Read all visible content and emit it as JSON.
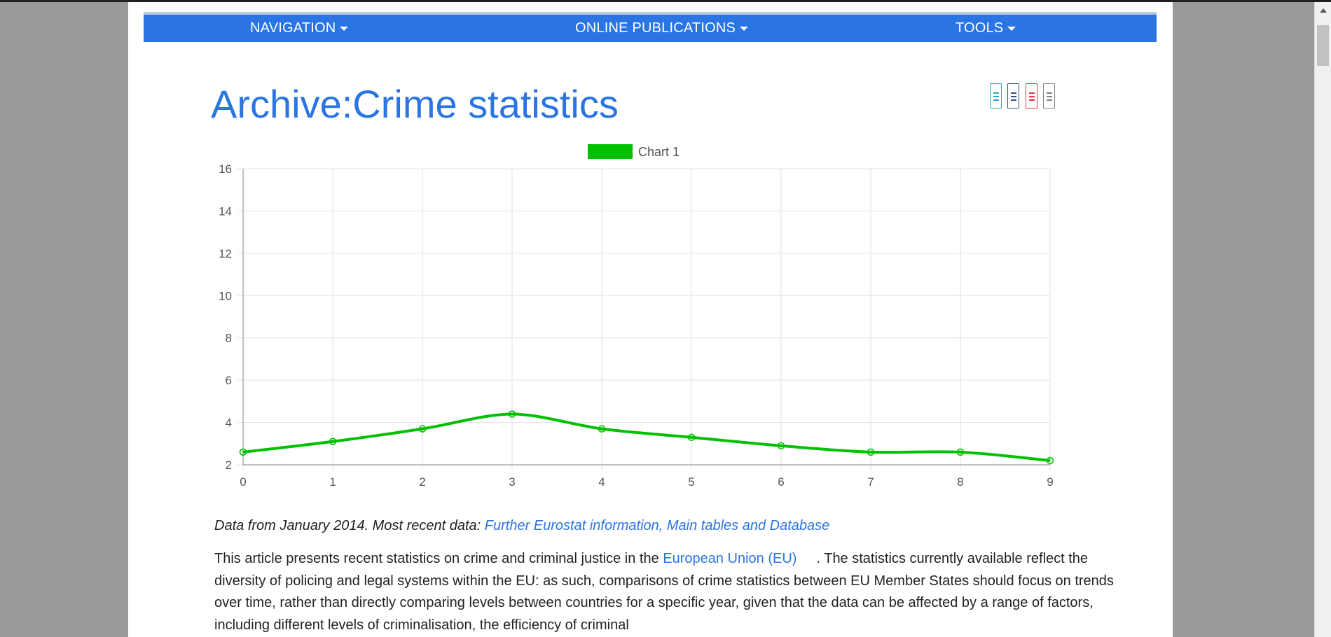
{
  "nav": {
    "items": [
      {
        "label": "NAVIGATION"
      },
      {
        "label": "ONLINE PUBLICATIONS"
      },
      {
        "label": "TOOLS"
      }
    ]
  },
  "page": {
    "title": "Archive:Crime statistics"
  },
  "tool_icons": [
    {
      "name": "print-icon",
      "color": "#29a8c9"
    },
    {
      "name": "export-icon",
      "color": "#2f4f8a"
    },
    {
      "name": "pdf-icon",
      "color": "#d83b3b"
    },
    {
      "name": "document-icon",
      "color": "#808080"
    }
  ],
  "chart_data": {
    "type": "line",
    "legend": [
      "Chart 1"
    ],
    "legend_position": "top",
    "series": [
      {
        "name": "Chart 1",
        "color": "#00c000",
        "values": [
          2.6,
          3.1,
          3.7,
          4.4,
          3.7,
          3.3,
          2.9,
          2.6,
          2.6,
          2.2
        ]
      }
    ],
    "x": [
      0,
      1,
      2,
      3,
      4,
      5,
      6,
      7,
      8,
      9
    ],
    "x_ticks": [
      "0",
      "1",
      "2",
      "3",
      "4",
      "5",
      "6",
      "7",
      "8",
      "9"
    ],
    "y_ticks": [
      "2",
      "4",
      "6",
      "8",
      "10",
      "12",
      "14",
      "16"
    ],
    "ylim": [
      2,
      16
    ],
    "grid": true
  },
  "caption": {
    "text": "Data from January 2014. Most recent data: ",
    "link": "Further Eurostat information, Main tables and Database"
  },
  "intro": {
    "before_link": "This article presents recent statistics on crime and criminal justice in the ",
    "link": "European Union (EU)",
    "after_link": ". The statistics currently available reflect the diversity of policing and legal systems within the EU: as such, comparisons of crime statistics between EU Member States should focus on trends over time, rather than directly comparing levels between countries for a specific year, given that the data can be affected by a range of factors, including different levels of criminalisation, the efficiency of criminal"
  }
}
